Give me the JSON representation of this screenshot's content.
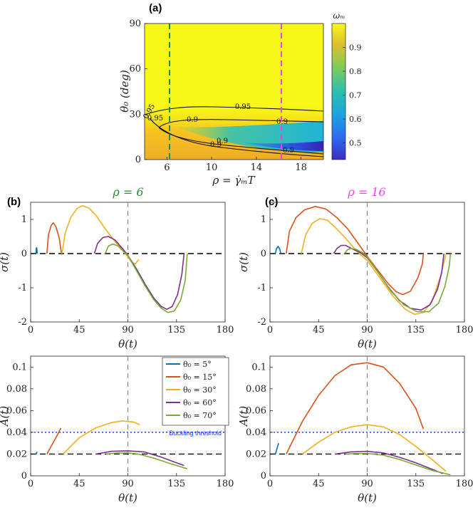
{
  "chart_data": [
    {
      "id": "a",
      "panel_label": "(a)",
      "type": "heatmap",
      "xlabel": "ρ = γ̇ₘT",
      "ylabel": "θ₀ (deg)",
      "xlim": [
        4,
        20
      ],
      "ylim": [
        0,
        90
      ],
      "xticks": [
        "6",
        "10",
        "14",
        "18"
      ],
      "yticks": [
        "0",
        "30",
        "60",
        "90"
      ],
      "colorbar": {
        "label": "ωₘ",
        "range": [
          0.43,
          1.0
        ],
        "ticks": [
          "0.5",
          "0.6",
          "0.7",
          "0.8",
          "0.9"
        ]
      },
      "contour_labels": [
        "0.95",
        "0.9",
        "0.9",
        "0.95",
        "0.9",
        "0.9",
        "0.9",
        "0.95"
      ],
      "vlines": [
        {
          "x": 6,
          "color": "#1f8a5a"
        },
        {
          "x": 16,
          "color": "#ee44ee"
        }
      ]
    },
    {
      "id": "b_top",
      "panel_label": "(b)",
      "title": "ρ = 6",
      "title_color": "#2e8b3a",
      "type": "line",
      "xlabel": "θ(t)",
      "ylabel": "σ(t)",
      "xlim": [
        0,
        180
      ],
      "ylim": [
        -2,
        1.5
      ],
      "xticks": [
        "0",
        "45",
        "90",
        "135",
        "180"
      ],
      "yticks": [
        "-2",
        "-1",
        "0",
        "1"
      ],
      "series": [
        {
          "theta0": 5,
          "color": "#0072BD",
          "points": [
            [
              5,
              0
            ],
            [
              5.3,
              0.16
            ],
            [
              5.6,
              0.17
            ],
            [
              6,
              0.05
            ],
            [
              6.2,
              0
            ]
          ]
        },
        {
          "theta0": 15,
          "color": "#D95319",
          "points": [
            [
              15,
              0
            ],
            [
              16.5,
              0.55
            ],
            [
              19,
              0.82
            ],
            [
              21,
              0.9
            ],
            [
              23.5,
              0.78
            ],
            [
              26.5,
              0.45
            ],
            [
              28.5,
              0
            ]
          ]
        },
        {
          "theta0": 30,
          "color": "#EDB120",
          "points": [
            [
              29,
              0
            ],
            [
              32,
              0.6
            ],
            [
              37,
              1.05
            ],
            [
              43,
              1.32
            ],
            [
              48,
              1.4
            ],
            [
              54,
              1.33
            ],
            [
              61,
              1.1
            ],
            [
              69,
              0.72
            ],
            [
              77,
              0.4
            ],
            [
              85,
              0.1
            ],
            [
              90,
              -0.1
            ],
            [
              94,
              -0.27
            ],
            [
              97,
              -0.3
            ],
            [
              99,
              -0.21
            ],
            [
              100.5,
              -0.18
            ]
          ]
        },
        {
          "theta0": 60,
          "color": "#7E2F8E",
          "points": [
            [
              59,
              0
            ],
            [
              62,
              0.3
            ],
            [
              67,
              0.47
            ],
            [
              72,
              0.5
            ],
            [
              78,
              0.4
            ],
            [
              85,
              0.15
            ],
            [
              90,
              -0.05
            ],
            [
              98,
              -0.45
            ],
            [
              106,
              -0.9
            ],
            [
              114,
              -1.3
            ],
            [
              121,
              -1.55
            ],
            [
              126,
              -1.63
            ],
            [
              131,
              -1.55
            ],
            [
              136,
              -1.2
            ],
            [
              140,
              -0.6
            ],
            [
              142,
              0
            ]
          ]
        },
        {
          "theta0": 70,
          "color": "#77AC30",
          "points": [
            [
              69,
              0
            ],
            [
              72,
              0.22
            ],
            [
              76,
              0.28
            ],
            [
              81,
              0.22
            ],
            [
              86,
              0.06
            ],
            [
              90,
              -0.05
            ],
            [
              98,
              -0.5
            ],
            [
              106,
              -0.95
            ],
            [
              114,
              -1.35
            ],
            [
              121,
              -1.6
            ],
            [
              127,
              -1.72
            ],
            [
              133,
              -1.68
            ],
            [
              139,
              -1.35
            ],
            [
              143,
              -0.8
            ],
            [
              145,
              0
            ]
          ]
        }
      ]
    },
    {
      "id": "c_top",
      "panel_label": "(c)",
      "title": "ρ = 16",
      "title_color": "#ee44ee",
      "type": "line",
      "xlabel": "θ(t)",
      "ylabel": "σ(t)",
      "xlim": [
        0,
        180
      ],
      "ylim": [
        -2,
        1.5
      ],
      "xticks": [
        "0",
        "45",
        "90",
        "135",
        "180"
      ],
      "yticks": [
        "-2",
        "-1",
        "0",
        "1"
      ],
      "series": [
        {
          "theta0": 5,
          "color": "#0072BD",
          "points": [
            [
              5,
              0
            ],
            [
              6,
              0.15
            ],
            [
              7.5,
              0.21
            ],
            [
              9,
              0.14
            ],
            [
              10,
              0
            ]
          ]
        },
        {
          "theta0": 15,
          "color": "#D95319",
          "points": [
            [
              15,
              0
            ],
            [
              18,
              0.65
            ],
            [
              24,
              1.05
            ],
            [
              32,
              1.28
            ],
            [
              42,
              1.38
            ],
            [
              52,
              1.3
            ],
            [
              62,
              1.05
            ],
            [
              72,
              0.72
            ],
            [
              82,
              0.28
            ],
            [
              90,
              -0.08
            ],
            [
              100,
              -0.5
            ],
            [
              110,
              -0.9
            ],
            [
              117,
              -1.12
            ],
            [
              123,
              -1.2
            ],
            [
              130,
              -1.1
            ],
            [
              137,
              -0.7
            ],
            [
              141,
              -0.3
            ],
            [
              142,
              0
            ]
          ]
        },
        {
          "theta0": 30,
          "color": "#EDB120",
          "points": [
            [
              29,
              0
            ],
            [
              33,
              0.55
            ],
            [
              39,
              0.88
            ],
            [
              46,
              1.02
            ],
            [
              53,
              0.98
            ],
            [
              61,
              0.75
            ],
            [
              70,
              0.45
            ],
            [
              80,
              0.08
            ],
            [
              90,
              -0.2
            ],
            [
              102,
              -0.72
            ],
            [
              114,
              -1.25
            ],
            [
              125,
              -1.62
            ],
            [
              134,
              -1.78
            ],
            [
              142,
              -1.72
            ],
            [
              150,
              -1.4
            ],
            [
              158,
              -0.65
            ],
            [
              163,
              0
            ]
          ]
        },
        {
          "theta0": 60,
          "color": "#7E2F8E",
          "points": [
            [
              59,
              0
            ],
            [
              62,
              0.15
            ],
            [
              66,
              0.24
            ],
            [
              70,
              0.24
            ],
            [
              76,
              0.14
            ],
            [
              84,
              0.02
            ],
            [
              90,
              -0.12
            ],
            [
              100,
              -0.55
            ],
            [
              110,
              -1.0
            ],
            [
              120,
              -1.38
            ],
            [
              130,
              -1.6
            ],
            [
              140,
              -1.65
            ],
            [
              148,
              -1.5
            ],
            [
              155,
              -1.05
            ],
            [
              159,
              -0.55
            ],
            [
              161,
              0
            ]
          ]
        },
        {
          "theta0": 70,
          "color": "#77AC30",
          "points": [
            [
              69,
              0
            ],
            [
              72,
              0.12
            ],
            [
              75,
              0.15
            ],
            [
              80,
              0.12
            ],
            [
              86,
              0.02
            ],
            [
              90,
              -0.1
            ],
            [
              100,
              -0.55
            ],
            [
              112,
              -1.1
            ],
            [
              124,
              -1.5
            ],
            [
              136,
              -1.7
            ],
            [
              147,
              -1.7
            ],
            [
              156,
              -1.45
            ],
            [
              162,
              -0.95
            ],
            [
              166,
              -0.35
            ],
            [
              167,
              0
            ]
          ]
        }
      ]
    },
    {
      "id": "b_bottom",
      "type": "line",
      "xlabel": "θ(t)",
      "ylabel": "A(t)",
      "xlim": [
        0,
        180
      ],
      "ylim": [
        0,
        0.11
      ],
      "xticks": [
        "0",
        "45",
        "90",
        "135",
        "180"
      ],
      "yticks": [
        "0",
        "0.02",
        "0.04",
        "0.06",
        "0.08",
        "0.1"
      ],
      "threshold": {
        "y": 0.04,
        "label": "Buckling threshold",
        "color": "#1a3cff"
      },
      "series": [
        {
          "theta0": 5,
          "color": "#0072BD",
          "points": [
            [
              5,
              0.02
            ],
            [
              6,
              0.022
            ]
          ]
        },
        {
          "theta0": 15,
          "color": "#D95319",
          "points": [
            [
              15,
              0.02
            ],
            [
              20,
              0.029
            ],
            [
              25,
              0.038
            ],
            [
              28,
              0.044
            ]
          ]
        },
        {
          "theta0": 30,
          "color": "#EDB120",
          "points": [
            [
              30,
              0.02
            ],
            [
              45,
              0.035
            ],
            [
              60,
              0.044
            ],
            [
              75,
              0.049
            ],
            [
              85,
              0.0505
            ],
            [
              95,
              0.0495
            ],
            [
              101,
              0.047
            ]
          ]
        },
        {
          "theta0": 60,
          "color": "#7E2F8E",
          "points": [
            [
              60,
              0.02
            ],
            [
              75,
              0.0225
            ],
            [
              90,
              0.023
            ],
            [
              105,
              0.022
            ],
            [
              120,
              0.0175
            ],
            [
              135,
              0.012
            ],
            [
              142,
              0.0095
            ]
          ]
        },
        {
          "theta0": 70,
          "color": "#77AC30",
          "points": [
            [
              70,
              0.02
            ],
            [
              80,
              0.021
            ],
            [
              90,
              0.021
            ],
            [
              100,
              0.02
            ],
            [
              115,
              0.016
            ],
            [
              130,
              0.011
            ],
            [
              145,
              0.0065
            ]
          ]
        }
      ]
    },
    {
      "id": "c_bottom",
      "type": "line",
      "xlabel": "θ(t)",
      "ylabel": "A(t)",
      "xlim": [
        0,
        180
      ],
      "ylim": [
        0,
        0.11
      ],
      "xticks": [
        "0",
        "45",
        "90",
        "135",
        "180"
      ],
      "yticks": [
        "0",
        "0.02",
        "0.04",
        "0.06",
        "0.08",
        "0.1"
      ],
      "threshold": {
        "y": 0.04,
        "color": "#1a3cff"
      },
      "series": [
        {
          "theta0": 5,
          "color": "#0072BD",
          "points": [
            [
              5,
              0.02
            ],
            [
              8,
              0.03
            ]
          ]
        },
        {
          "theta0": 15,
          "color": "#D95319",
          "points": [
            [
              15,
              0.02
            ],
            [
              30,
              0.05
            ],
            [
              45,
              0.074
            ],
            [
              60,
              0.092
            ],
            [
              75,
              0.102
            ],
            [
              90,
              0.104
            ],
            [
              105,
              0.1
            ],
            [
              120,
              0.085
            ],
            [
              135,
              0.062
            ],
            [
              142,
              0.043
            ]
          ]
        },
        {
          "theta0": 30,
          "color": "#EDB120",
          "points": [
            [
              30,
              0.02
            ],
            [
              45,
              0.031
            ],
            [
              60,
              0.04
            ],
            [
              75,
              0.045
            ],
            [
              90,
              0.047
            ],
            [
              105,
              0.045
            ],
            [
              120,
              0.038
            ],
            [
              135,
              0.027
            ],
            [
              150,
              0.015
            ],
            [
              163,
              0.004
            ]
          ]
        },
        {
          "theta0": 60,
          "color": "#7E2F8E",
          "points": [
            [
              60,
              0.02
            ],
            [
              75,
              0.022
            ],
            [
              90,
              0.0225
            ],
            [
              105,
              0.021
            ],
            [
              120,
              0.017
            ],
            [
              135,
              0.012
            ],
            [
              150,
              0.006
            ],
            [
              160,
              0.002
            ]
          ]
        },
        {
          "theta0": 70,
          "color": "#77AC30",
          "points": [
            [
              70,
              0.02
            ],
            [
              80,
              0.0205
            ],
            [
              90,
              0.0205
            ],
            [
              105,
              0.019
            ],
            [
              120,
              0.015
            ],
            [
              135,
              0.01
            ],
            [
              150,
              0.005
            ],
            [
              167,
              0.001
            ]
          ]
        }
      ]
    }
  ],
  "legend": [
    {
      "label": "θ₀ = 5°",
      "color": "#0072BD"
    },
    {
      "label": "θ₀ = 15°",
      "color": "#D95319"
    },
    {
      "label": "θ₀ = 30°",
      "color": "#EDB120"
    },
    {
      "label": "θ₀ = 60°",
      "color": "#7E2F8E"
    },
    {
      "label": "θ₀ = 70°",
      "color": "#77AC30"
    }
  ]
}
